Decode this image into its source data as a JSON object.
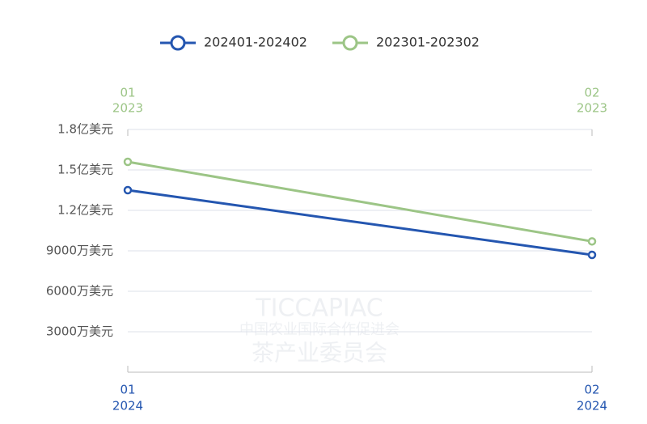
{
  "chart_data": {
    "type": "line",
    "categories": [
      "01",
      "02"
    ],
    "x_year": "2024",
    "x2_categories": [
      "01",
      "02"
    ],
    "x2_year": "2023",
    "series": [
      {
        "name": "202401-202402",
        "color": "#2456b0",
        "values": [
          13500,
          8700
        ]
      },
      {
        "name": "202301-202302",
        "color": "#9cc586",
        "values": [
          15600,
          9700
        ]
      }
    ],
    "ylim": [
      0,
      18000
    ],
    "yticks": [
      {
        "value": 3000,
        "label": "3000万美元"
      },
      {
        "value": 6000,
        "label": "6000万美元"
      },
      {
        "value": 9000,
        "label": "9000万美元"
      },
      {
        "value": 12000,
        "label": "1.2亿美元"
      },
      {
        "value": 15000,
        "label": "1.5亿美元"
      },
      {
        "value": 18000,
        "label": "1.8亿美元"
      }
    ],
    "grid": true,
    "legend": "top",
    "watermark": [
      "TICCAPIAC",
      "中国农业国际合作促进会",
      "茶产业委员会"
    ]
  }
}
